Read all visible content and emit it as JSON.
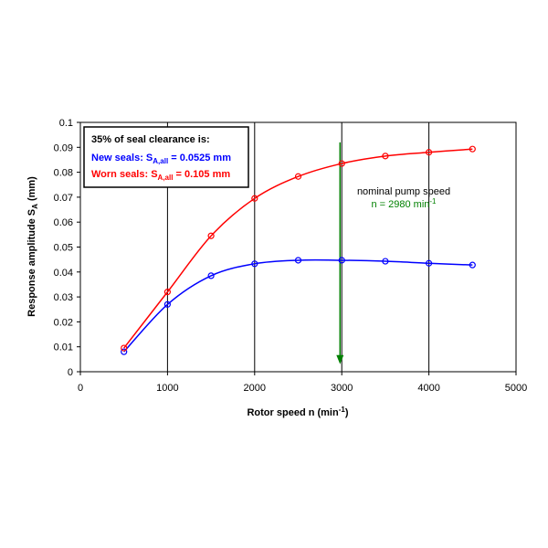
{
  "chart_data": {
    "type": "line",
    "x": [
      500,
      1000,
      1500,
      2000,
      2500,
      3000,
      3500,
      4000,
      4500
    ],
    "series": [
      {
        "color": "#0000ff",
        "values": [
          0.008,
          0.027,
          0.0385,
          0.0433,
          0.0447,
          0.0447,
          0.0443,
          0.0435,
          0.0428
        ]
      },
      {
        "color": "#ff0000",
        "values": [
          0.0095,
          0.032,
          0.0545,
          0.0695,
          0.0783,
          0.0835,
          0.0865,
          0.088,
          0.0893
        ]
      }
    ],
    "xlim": [
      0,
      5000
    ],
    "xticks": [
      0,
      1000,
      2000,
      3000,
      4000,
      5000
    ],
    "ylim": [
      0,
      0.1
    ],
    "yticks": [
      0,
      0.01,
      0.02,
      0.03,
      0.04,
      0.05,
      0.06,
      0.07,
      0.08,
      0.09,
      0.1
    ],
    "grid": "x",
    "xlabel": {
      "text": "Rotor speed n (min",
      "sup": "-1",
      "after": ")"
    },
    "ylabel": {
      "text": "Response amplitude S",
      "sub": "A",
      "after": " (mm)"
    },
    "legend": {
      "title": "35% of seal clearance is:",
      "entries": [
        {
          "text": "New seals: S",
          "sub": "A,all",
          "after": " = 0.0525 mm"
        },
        {
          "text": "Worn seals: S",
          "sub": "A,all",
          "after": " = 0.105 mm"
        }
      ]
    },
    "annotation": {
      "line1": "nominal pump speed",
      "line2": "n = 2980 min",
      "sup": "-1",
      "color": "#008000",
      "x": 2980,
      "y_from": 0.092,
      "y_to": 0.003
    }
  }
}
